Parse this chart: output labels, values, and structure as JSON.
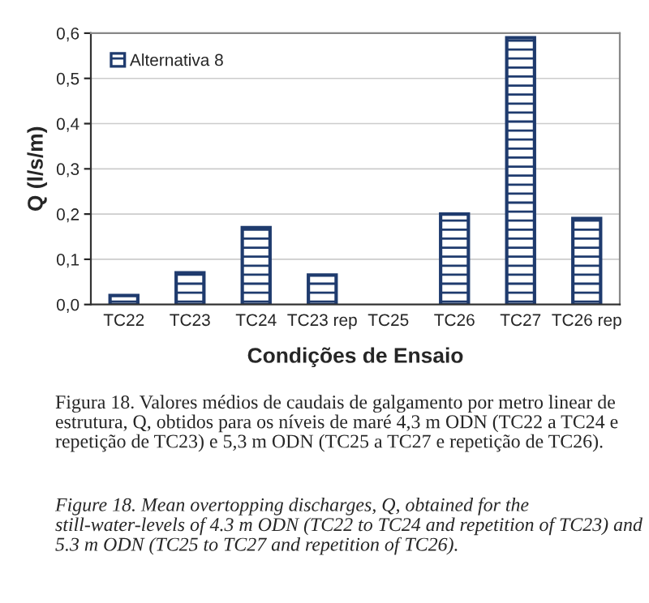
{
  "chart_data": {
    "type": "bar",
    "xlabel": "Condições de Ensaio",
    "ylabel": "Q (l/s/m)",
    "categories": [
      "TC22",
      "TC23",
      "TC24",
      "TC23 rep",
      "TC25",
      "TC26",
      "TC27",
      "TC26 rep"
    ],
    "series": [
      {
        "name": "Alternativa 8",
        "color": "#1f3b6e",
        "values": [
          0.02,
          0.07,
          0.17,
          0.065,
          null,
          0.2,
          0.59,
          0.19
        ]
      }
    ],
    "ylim": [
      0,
      0.6
    ],
    "yticks": [
      {
        "value": 0,
        "label": "0,0"
      },
      {
        "value": 0.1,
        "label": "0,1"
      },
      {
        "value": 0.2,
        "label": "0,2"
      },
      {
        "value": 0.3,
        "label": "0,3"
      },
      {
        "value": 0.4,
        "label": "0,4"
      },
      {
        "value": 0.5,
        "label": "0,5"
      },
      {
        "value": 0.6,
        "label": "0,6"
      }
    ],
    "grid": "y",
    "legend": "top left",
    "annotations": [
      "Figura 18. Valores médios de caudais de galgamento por metro linear de estrutura, Q, obtidos para os níveis de maré 4,3 m ODN (TC22 a TC24 e repetição de TC23) e 5,3 m ODN (TC25 a TC27 e repetição de TC26).",
      "Figure 18. Mean overtopping discharges, Q, obtained for the still-water-levels of 4.3 m ODN (TC22 to TC24 and repetition of TC23) and 5.3 m ODN (TC25 to TC27 and repetition of TC26)."
    ]
  }
}
